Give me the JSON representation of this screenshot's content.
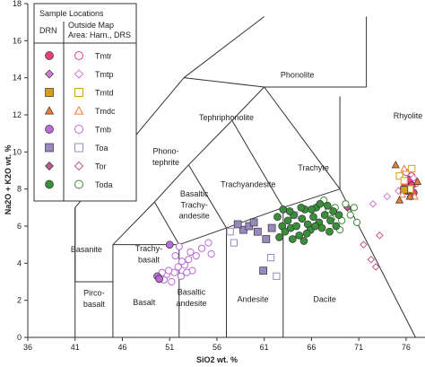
{
  "chart_data": {
    "type": "scatter",
    "xlabel": "SiO2 wt. %",
    "ylabel": "Na2O + K2O wt. %",
    "xlim": [
      36,
      78
    ],
    "ylim": [
      0,
      18
    ],
    "xticks": [
      "36",
      "41",
      "46",
      "51",
      "56",
      "61",
      "66",
      "71",
      "76"
    ],
    "yticks": [
      "0",
      "2",
      "4",
      "6",
      "8",
      "10",
      "12",
      "14",
      "16",
      "18"
    ],
    "grid": false,
    "legend_position": "top-left",
    "legend": {
      "title": "Sample Locations",
      "col1_header": "DRN",
      "col2_header": "Outside Map Area: Harn., DRS",
      "labels": [
        "Tmtr",
        "Tmtp",
        "Tmtd",
        "Tmdc",
        "Tmb",
        "Toa",
        "Tor",
        "Toda"
      ]
    },
    "field_labels": [
      {
        "text": "Phonolite",
        "x": 64.5,
        "y": 14.0
      },
      {
        "text": "Tephriphonolite",
        "x": 57.0,
        "y": 11.7
      },
      {
        "text": "Phono-",
        "x": 50.6,
        "y": 9.9
      },
      {
        "text": "tephrite",
        "x": 50.6,
        "y": 9.3
      },
      {
        "text": "Trachyte",
        "x": 66.2,
        "y": 9.0
      },
      {
        "text": "Rhyolite",
        "x": 76.2,
        "y": 11.8
      },
      {
        "text": "Trachyandesite",
        "x": 59.3,
        "y": 8.1
      },
      {
        "text": "Basaltic",
        "x": 53.6,
        "y": 7.6
      },
      {
        "text": "Trachy-",
        "x": 53.6,
        "y": 7.0
      },
      {
        "text": "andesite",
        "x": 53.6,
        "y": 6.4
      },
      {
        "text": "Basanite",
        "x": 42.2,
        "y": 4.6
      },
      {
        "text": "Trachy-",
        "x": 48.8,
        "y": 4.65
      },
      {
        "text": "basalt",
        "x": 48.8,
        "y": 4.05
      },
      {
        "text": "Andesite",
        "x": 59.8,
        "y": 1.9
      },
      {
        "text": "Dacite",
        "x": 67.4,
        "y": 1.9
      },
      {
        "text": "Basalt",
        "x": 48.3,
        "y": 1.75
      },
      {
        "text": "Basaltic",
        "x": 53.3,
        "y": 2.3
      },
      {
        "text": "andesite",
        "x": 53.3,
        "y": 1.7
      },
      {
        "text": "Pirco-",
        "x": 43.0,
        "y": 2.25
      },
      {
        "text": "basalt",
        "x": 43.0,
        "y": 1.65
      }
    ],
    "series": [
      {
        "name": "Tmtr",
        "marker": "circle",
        "color": "#e8417a",
        "filled_points": [
          [
            75.9,
            8.2
          ],
          [
            76.3,
            8.5
          ],
          [
            76.6,
            8.2
          ],
          [
            76.1,
            7.9
          ],
          [
            76.8,
            7.8
          ]
        ],
        "open_points": [
          [
            76.0,
            8.9
          ],
          [
            76.6,
            8.7
          ],
          [
            77.0,
            8.3
          ],
          [
            75.7,
            8.0
          ]
        ]
      },
      {
        "name": "Tmtp",
        "marker": "diamond",
        "color": "#d878d8",
        "filled_points": [
          [
            76.5,
            7.6
          ]
        ],
        "open_points": [
          [
            74.0,
            7.6
          ],
          [
            72.5,
            7.2
          ],
          [
            76.8,
            8.6
          ],
          [
            75.2,
            7.9
          ]
        ]
      },
      {
        "name": "Tmtd",
        "marker": "square",
        "color": "#d4a017",
        "filled_points": [
          [
            75.8,
            7.95
          ]
        ],
        "open_points": [
          [
            75.3,
            8.7
          ],
          [
            76.6,
            9.1
          ],
          [
            75.8,
            8.45
          ],
          [
            76.4,
            8.0
          ]
        ]
      },
      {
        "name": "Tmdc",
        "marker": "triangle",
        "color": "#f07a30",
        "filled_points": [
          [
            74.9,
            9.3
          ],
          [
            75.3,
            7.4
          ],
          [
            76.4,
            7.6
          ],
          [
            77.2,
            8.4
          ]
        ],
        "open_points": [
          [
            75.8,
            9.1
          ],
          [
            76.9,
            7.6
          ],
          [
            75.6,
            7.7
          ]
        ]
      },
      {
        "name": "Tmb",
        "marker": "circle",
        "color": "#b86cd8",
        "filled_points": [
          [
            49.7,
            3.3
          ],
          [
            49.9,
            3.15
          ],
          [
            51.0,
            5.0
          ]
        ],
        "open_points": [
          [
            50.4,
            3.1
          ],
          [
            50.7,
            3.4
          ],
          [
            51.2,
            3.0
          ],
          [
            51.5,
            3.5
          ],
          [
            51.9,
            3.8
          ],
          [
            52.2,
            3.3
          ],
          [
            52.6,
            3.9
          ],
          [
            53.0,
            4.2
          ],
          [
            53.4,
            3.6
          ],
          [
            53.8,
            4.4
          ],
          [
            54.4,
            4.8
          ],
          [
            55.1,
            5.1
          ],
          [
            55.4,
            4.5
          ],
          [
            53.2,
            4.6
          ],
          [
            52.0,
            4.9
          ],
          [
            50.9,
            3.6
          ],
          [
            52.3,
            4.1
          ],
          [
            51.6,
            4.4
          ],
          [
            50.2,
            3.5
          ],
          [
            52.8,
            3.5
          ]
        ]
      },
      {
        "name": "Toa",
        "marker": "square",
        "color": "#9a88c0",
        "filled_points": [
          [
            58.8,
            5.8
          ],
          [
            59.4,
            6.0
          ],
          [
            60.3,
            5.7
          ],
          [
            60.9,
            3.6
          ],
          [
            61.8,
            5.9
          ],
          [
            58.2,
            6.1
          ],
          [
            61.2,
            5.3
          ],
          [
            59.9,
            6.2
          ]
        ],
        "open_points": [
          [
            57.4,
            5.7
          ],
          [
            57.8,
            5.1
          ],
          [
            61.7,
            4.3
          ],
          [
            62.3,
            3.3
          ],
          [
            64.2,
            6.6
          ]
        ]
      },
      {
        "name": "Tor",
        "marker": "diamond",
        "color": "#c0588a",
        "filled_points": [
          [
            69.8,
            7.0
          ]
        ],
        "open_points": [
          [
            71.5,
            5.0
          ],
          [
            72.3,
            4.2
          ],
          [
            73.2,
            5.5
          ],
          [
            72.8,
            3.8
          ]
        ]
      },
      {
        "name": "Toda",
        "marker": "circle",
        "color": "#3a8f3a",
        "filled_points": [
          [
            62.6,
            5.4
          ],
          [
            62.9,
            6.0
          ],
          [
            63.2,
            5.7
          ],
          [
            63.5,
            6.3
          ],
          [
            63.8,
            5.9
          ],
          [
            64.1,
            6.6
          ],
          [
            64.4,
            6.0
          ],
          [
            64.7,
            5.5
          ],
          [
            65.0,
            6.4
          ],
          [
            65.3,
            6.9
          ],
          [
            65.6,
            6.1
          ],
          [
            65.9,
            5.8
          ],
          [
            66.2,
            6.5
          ],
          [
            66.5,
            7.0
          ],
          [
            66.8,
            6.2
          ],
          [
            67.1,
            5.9
          ],
          [
            67.4,
            6.6
          ],
          [
            67.7,
            7.1
          ],
          [
            68.0,
            6.3
          ],
          [
            68.3,
            6.8
          ],
          [
            68.6,
            6.0
          ],
          [
            64.0,
            5.3
          ],
          [
            65.5,
            5.6
          ],
          [
            66.9,
            7.2
          ],
          [
            63.0,
            6.9
          ],
          [
            62.4,
            6.5
          ],
          [
            64.9,
            7.0
          ],
          [
            66.0,
            6.9
          ],
          [
            67.9,
            5.7
          ],
          [
            65.2,
            5.2
          ],
          [
            63.7,
            6.8
          ],
          [
            66.4,
            6.0
          ],
          [
            68.9,
            6.6
          ]
        ],
        "open_points": [
          [
            67.3,
            7.4
          ],
          [
            68.5,
            7.0
          ],
          [
            69.2,
            6.3
          ],
          [
            69.6,
            7.2
          ],
          [
            70.1,
            6.6
          ],
          [
            70.5,
            7.0
          ],
          [
            69.0,
            5.8
          ],
          [
            67.8,
            6.9
          ],
          [
            68.1,
            6.4
          ],
          [
            70.8,
            6.2
          ]
        ]
      }
    ]
  }
}
